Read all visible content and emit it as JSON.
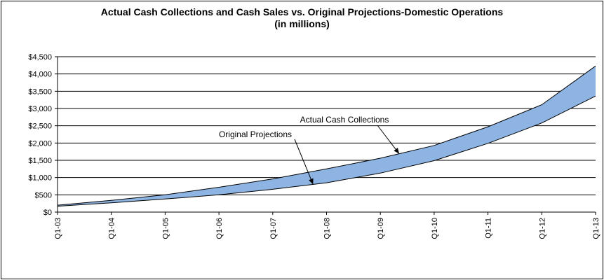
{
  "chart_data": {
    "type": "area",
    "title": "Actual Cash Collections and Cash Sales vs. Original Projections-Domestic Operations",
    "subtitle": "(in millions)",
    "categories": [
      "Q1-03",
      "Q1-04",
      "Q1-05",
      "Q1-06",
      "Q1-07",
      "Q1-08",
      "Q1-09",
      "Q1-10",
      "Q1-11",
      "Q1-12",
      "Q1-13"
    ],
    "y_ticks": [
      "$0",
      "$500",
      "$1,000",
      "$1,500",
      "$2,000",
      "$2,500",
      "$3,000",
      "$3,500",
      "$4,000",
      "$4,500"
    ],
    "ylim": [
      0,
      4500
    ],
    "grid": true,
    "band_color": "#8DB4E2",
    "series": [
      {
        "name": "Actual Cash Collections",
        "values": [
          200,
          340,
          500,
          720,
          960,
          1250,
          1560,
          1930,
          2470,
          3110,
          4230
        ]
      },
      {
        "name": "Original Projections",
        "values": [
          170,
          270,
          380,
          500,
          660,
          850,
          1130,
          1490,
          1990,
          2580,
          3360
        ]
      }
    ],
    "annotations": [
      {
        "text": "Actual Cash Collections",
        "series": 0,
        "arrow_x": 6.35
      },
      {
        "text": "Original Projections",
        "series": 1,
        "arrow_x": 4.75
      }
    ]
  }
}
